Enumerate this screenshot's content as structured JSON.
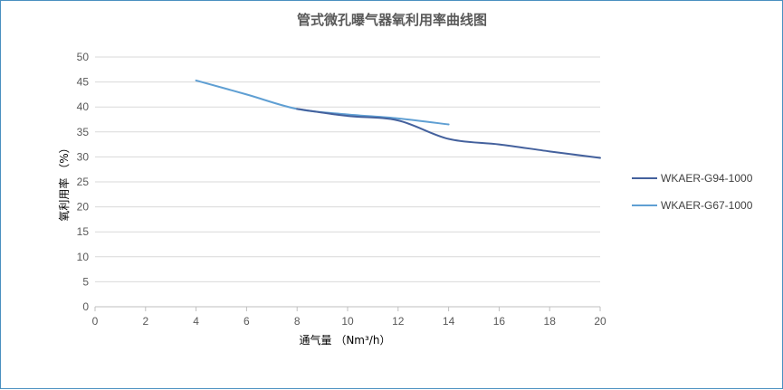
{
  "chart_data": {
    "type": "line",
    "title": "管式微孔曝气器氧利用率曲线图",
    "xlabel": "通气量 （Nm³/h）",
    "ylabel": "氧利用率  （%）",
    "xlim": [
      0,
      20
    ],
    "ylim": [
      0,
      50
    ],
    "x_ticks": [
      "0",
      "2",
      "4",
      "6",
      "8",
      "10",
      "12",
      "14",
      "16",
      "18",
      "20"
    ],
    "y_ticks": [
      "0",
      "5",
      "10",
      "15",
      "20",
      "25",
      "30",
      "35",
      "40",
      "45",
      "50"
    ],
    "grid": true,
    "legend_position": "right",
    "series": [
      {
        "name": "WKAER-G94-1000",
        "color": "#44619d",
        "x": [
          8,
          10,
          12,
          14,
          16,
          18,
          20
        ],
        "y": [
          39.6,
          38.2,
          37.3,
          33.6,
          32.5,
          31.1,
          29.8
        ]
      },
      {
        "name": "WKAER-G67-1000",
        "color": "#5f9fd3",
        "x": [
          4,
          6,
          8,
          10,
          12,
          14
        ],
        "y": [
          45.3,
          42.5,
          39.6,
          38.5,
          37.7,
          36.5
        ]
      }
    ]
  }
}
